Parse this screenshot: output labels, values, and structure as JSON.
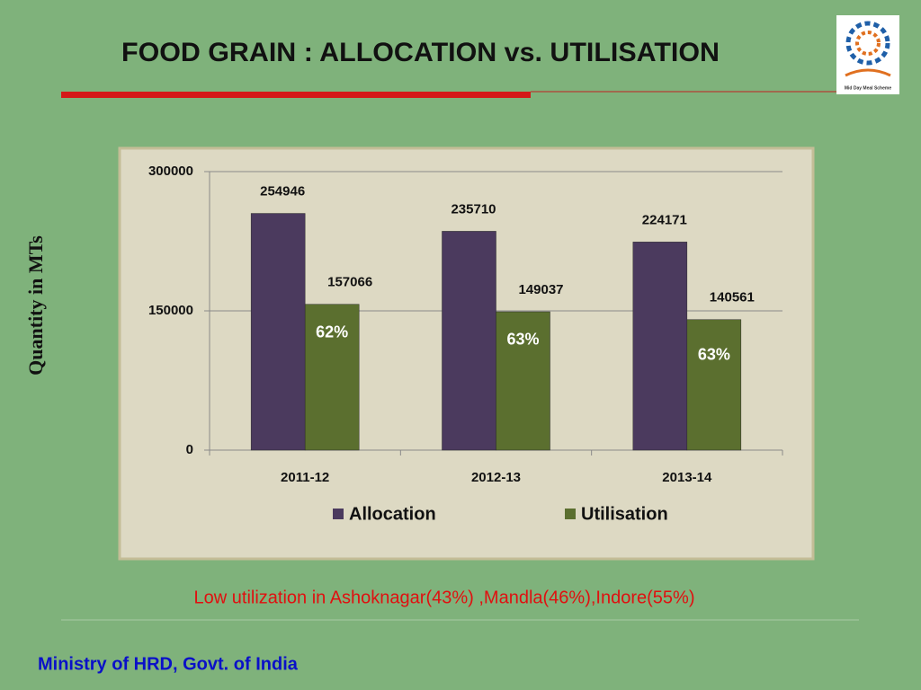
{
  "chart_data": {
    "type": "bar",
    "title": "FOOD GRAIN : ALLOCATION vs. UTILISATION",
    "y_label": "Quantity in MTs",
    "categories": [
      "2011-12",
      "2012-13",
      "2013-14"
    ],
    "series": [
      {
        "name": "Allocation",
        "color": "#4b3a5e",
        "values": [
          254946,
          235710,
          224171
        ]
      },
      {
        "name": "Utilisation",
        "color": "#5b6f2f",
        "values": [
          157066,
          149037,
          140561
        ]
      }
    ],
    "annotations": [
      "62%",
      "63%",
      "63%"
    ],
    "ylim": [
      0,
      300000
    ],
    "yticks": [
      0,
      150000,
      300000
    ],
    "grid": true,
    "legend": "bottom",
    "note": "Low utilization in Ashoknagar(43%) ,Mandla(46%),Indore(55%)"
  },
  "footer": "Ministry of HRD, Govt. of India",
  "logo_caption": "Mid Day Meal Scheme"
}
